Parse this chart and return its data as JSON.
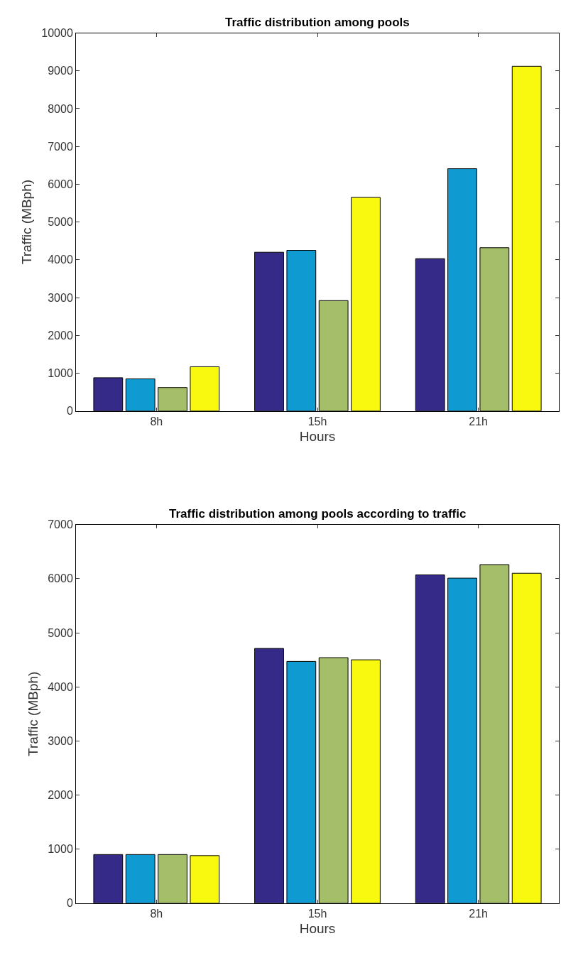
{
  "chart_data": [
    {
      "type": "bar",
      "title": "Traffic distribution among pools",
      "xlabel": "Hours",
      "ylabel": "Traffic (MBph)",
      "categories": [
        "8h",
        "15h",
        "21h"
      ],
      "series": [
        {
          "color": "#352a87",
          "values": [
            880,
            4200,
            4030
          ]
        },
        {
          "color": "#0f9bd2",
          "values": [
            850,
            4250,
            6410
          ]
        },
        {
          "color": "#a5be6a",
          "values": [
            620,
            2920,
            4320
          ]
        },
        {
          "color": "#f9f90f",
          "values": [
            1170,
            5650,
            9120
          ]
        }
      ],
      "ylim": [
        0,
        10000
      ],
      "yticks": [
        0,
        1000,
        2000,
        3000,
        4000,
        5000,
        6000,
        7000,
        8000,
        9000,
        10000
      ]
    },
    {
      "type": "bar",
      "title": "Traffic distribution among pools according to traffic",
      "xlabel": "Hours",
      "ylabel": "Traffic (MBph)",
      "categories": [
        "8h",
        "15h",
        "21h"
      ],
      "series": [
        {
          "color": "#352a87",
          "values": [
            900,
            4710,
            6070
          ]
        },
        {
          "color": "#0f9bd2",
          "values": [
            900,
            4470,
            6010
          ]
        },
        {
          "color": "#a5be6a",
          "values": [
            900,
            4540,
            6260
          ]
        },
        {
          "color": "#f9f90f",
          "values": [
            880,
            4500,
            6100
          ]
        }
      ],
      "ylim": [
        0,
        7000
      ],
      "yticks": [
        0,
        1000,
        2000,
        3000,
        4000,
        5000,
        6000,
        7000
      ]
    }
  ]
}
